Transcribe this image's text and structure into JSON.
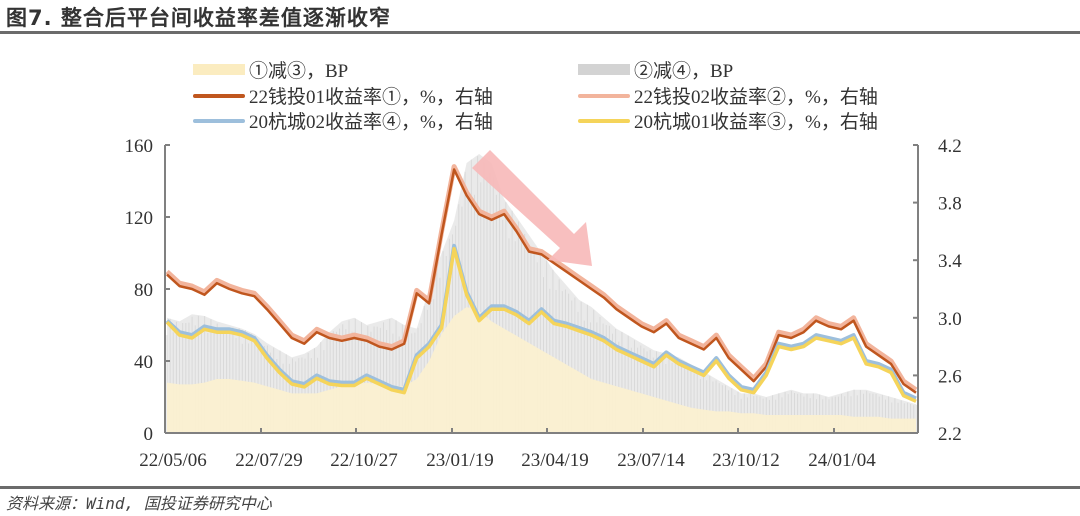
{
  "title": "图7. 整合后平台间收益率差值逐渐收窄",
  "source": "资料来源：Wind, 国投证券研究中心",
  "legend": [
    {
      "label": "①减③，BP",
      "color": "#fbecc0",
      "kind": "bar"
    },
    {
      "label": "②减④，BP",
      "color": "#d3d3d3",
      "kind": "bar"
    },
    {
      "label": "22钱投01收益率①，%，右轴",
      "color": "#c0561e",
      "kind": "line"
    },
    {
      "label": "22钱投02收益率②，%，右轴",
      "color": "#f2b49c",
      "kind": "line"
    },
    {
      "label": "20杭城02收益率④，%，右轴",
      "color": "#9dbfdc",
      "kind": "line"
    },
    {
      "label": "20杭城01收益率③，%，右轴",
      "color": "#f5d45a",
      "kind": "line"
    }
  ],
  "annotation": {
    "arrow": "downward trend arrow",
    "color": "#f7b8b8"
  },
  "chart_data": {
    "type": "bar+line",
    "title": "图7. 整合后平台间收益率差值逐渐收窄",
    "xlabel": "",
    "ylabel_left": "BP",
    "ylabel_right": "%",
    "ylim_left": [
      0,
      160
    ],
    "ylim_right": [
      2.2,
      4.2
    ],
    "yticks_left": [
      "0",
      "40",
      "80",
      "120",
      "160"
    ],
    "yticks_right": [
      "2.2",
      "2.6",
      "3.0",
      "3.4",
      "3.8",
      "4.2"
    ],
    "xticks": [
      "22/05/06",
      "22/07/29",
      "22/10/27",
      "23/01/19",
      "23/04/19",
      "23/07/14",
      "23/10/12",
      "24/01/04"
    ],
    "grid": false,
    "legend_position": "top",
    "x_index_count": 61,
    "series": [
      {
        "name": "①减③，BP",
        "axis": "left",
        "type": "bar",
        "values": [
          28,
          27,
          27,
          28,
          30,
          30,
          29,
          28,
          26,
          24,
          22,
          22,
          22,
          24,
          26,
          27,
          28,
          27,
          26,
          26,
          30,
          40,
          55,
          65,
          70,
          68,
          62,
          58,
          54,
          50,
          46,
          42,
          38,
          34,
          30,
          28,
          26,
          24,
          22,
          20,
          18,
          16,
          14,
          13,
          12,
          12,
          11,
          11,
          10,
          10,
          10,
          10,
          10,
          10,
          10,
          9,
          9,
          9,
          8,
          8,
          8
        ]
      },
      {
        "name": "②减④，BP",
        "axis": "left",
        "type": "bar",
        "values": [
          64,
          62,
          66,
          65,
          62,
          60,
          58,
          55,
          50,
          46,
          42,
          44,
          48,
          56,
          62,
          64,
          60,
          62,
          64,
          60,
          58,
          80,
          100,
          118,
          150,
          155,
          150,
          130,
          120,
          110,
          100,
          90,
          82,
          74,
          70,
          64,
          58,
          54,
          50,
          46,
          44,
          42,
          38,
          34,
          30,
          26,
          22,
          22,
          20,
          22,
          24,
          22,
          22,
          20,
          22,
          24,
          24,
          22,
          20,
          18,
          16
        ]
      },
      {
        "name": "22钱投01收益率①，%，右轴",
        "axis": "right",
        "type": "line",
        "values": [
          3.3,
          3.22,
          3.2,
          3.16,
          3.24,
          3.2,
          3.17,
          3.15,
          3.06,
          2.96,
          2.86,
          2.82,
          2.9,
          2.86,
          2.84,
          2.86,
          2.84,
          2.8,
          2.78,
          2.82,
          3.17,
          3.1,
          3.58,
          4.03,
          3.85,
          3.72,
          3.68,
          3.72,
          3.6,
          3.46,
          3.44,
          3.38,
          3.32,
          3.26,
          3.2,
          3.14,
          3.06,
          3.0,
          2.94,
          2.9,
          2.96,
          2.86,
          2.82,
          2.78,
          2.86,
          2.72,
          2.64,
          2.56,
          2.66,
          2.88,
          2.86,
          2.9,
          2.98,
          2.94,
          2.92,
          2.98,
          2.8,
          2.74,
          2.68,
          2.54,
          2.48
        ]
      },
      {
        "name": "22钱投02收益率②，%，右轴",
        "axis": "right",
        "type": "line",
        "values": [
          3.32,
          3.24,
          3.22,
          3.18,
          3.26,
          3.22,
          3.19,
          3.17,
          3.08,
          2.98,
          2.88,
          2.84,
          2.92,
          2.88,
          2.86,
          2.88,
          2.86,
          2.82,
          2.8,
          2.84,
          3.19,
          3.12,
          3.6,
          4.05,
          3.87,
          3.74,
          3.7,
          3.74,
          3.62,
          3.48,
          3.46,
          3.4,
          3.34,
          3.28,
          3.22,
          3.16,
          3.08,
          3.02,
          2.96,
          2.92,
          2.98,
          2.88,
          2.84,
          2.8,
          2.88,
          2.74,
          2.66,
          2.58,
          2.68,
          2.9,
          2.88,
          2.92,
          3.0,
          2.96,
          2.94,
          3.0,
          2.82,
          2.76,
          2.7,
          2.56,
          2.5
        ]
      },
      {
        "name": "20杭城02收益率④，%，右轴",
        "axis": "right",
        "type": "line",
        "values": [
          2.98,
          2.9,
          2.88,
          2.94,
          2.92,
          2.92,
          2.9,
          2.86,
          2.74,
          2.64,
          2.56,
          2.54,
          2.6,
          2.56,
          2.55,
          2.55,
          2.6,
          2.56,
          2.52,
          2.5,
          2.74,
          2.82,
          2.95,
          3.5,
          3.18,
          3.0,
          3.08,
          3.08,
          3.04,
          2.98,
          3.06,
          2.98,
          2.96,
          2.93,
          2.9,
          2.86,
          2.8,
          2.76,
          2.72,
          2.68,
          2.76,
          2.7,
          2.66,
          2.62,
          2.72,
          2.6,
          2.52,
          2.5,
          2.62,
          2.82,
          2.8,
          2.82,
          2.88,
          2.86,
          2.84,
          2.88,
          2.7,
          2.68,
          2.64,
          2.48,
          2.44
        ]
      },
      {
        "name": "20杭城01收益率③，%，右轴",
        "axis": "right",
        "type": "line",
        "values": [
          2.97,
          2.88,
          2.86,
          2.92,
          2.9,
          2.9,
          2.88,
          2.84,
          2.72,
          2.62,
          2.54,
          2.52,
          2.58,
          2.54,
          2.53,
          2.53,
          2.58,
          2.54,
          2.5,
          2.48,
          2.72,
          2.8,
          2.93,
          3.48,
          3.16,
          2.98,
          3.06,
          3.06,
          3.02,
          2.96,
          3.04,
          2.96,
          2.94,
          2.91,
          2.88,
          2.84,
          2.78,
          2.74,
          2.7,
          2.66,
          2.74,
          2.68,
          2.64,
          2.6,
          2.7,
          2.58,
          2.5,
          2.48,
          2.6,
          2.8,
          2.78,
          2.8,
          2.86,
          2.84,
          2.82,
          2.86,
          2.68,
          2.66,
          2.62,
          2.46,
          2.42
        ]
      }
    ]
  }
}
